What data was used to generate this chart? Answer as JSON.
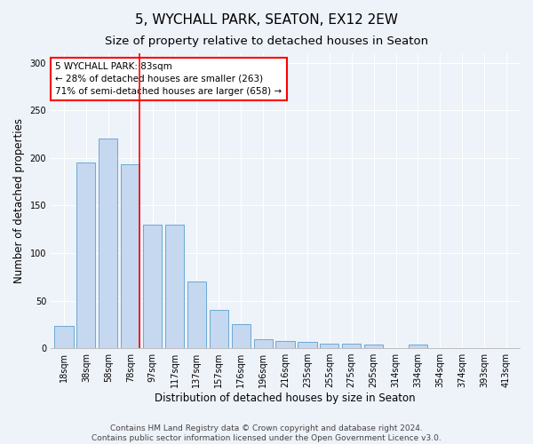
{
  "title": "5, WYCHALL PARK, SEATON, EX12 2EW",
  "subtitle": "Size of property relative to detached houses in Seaton",
  "xlabel": "Distribution of detached houses by size in Seaton",
  "ylabel": "Number of detached properties",
  "categories": [
    "18sqm",
    "38sqm",
    "58sqm",
    "78sqm",
    "97sqm",
    "117sqm",
    "137sqm",
    "157sqm",
    "176sqm",
    "196sqm",
    "216sqm",
    "235sqm",
    "255sqm",
    "275sqm",
    "295sqm",
    "314sqm",
    "334sqm",
    "354sqm",
    "374sqm",
    "393sqm",
    "413sqm"
  ],
  "values": [
    23,
    195,
    220,
    193,
    130,
    130,
    70,
    40,
    25,
    9,
    8,
    7,
    5,
    5,
    4,
    0,
    4,
    0,
    0,
    0,
    0
  ],
  "bar_color": "#c5d8ef",
  "bar_edge_color": "#6aaad4",
  "annotation_text": "5 WYCHALL PARK: 83sqm\n← 28% of detached houses are smaller (263)\n71% of semi-detached houses are larger (658) →",
  "annotation_box_color": "white",
  "annotation_box_edge_color": "red",
  "vline_color": "red",
  "vline_x": 3.42,
  "ylim": [
    0,
    310
  ],
  "yticks": [
    0,
    50,
    100,
    150,
    200,
    250,
    300
  ],
  "footer1": "Contains HM Land Registry data © Crown copyright and database right 2024.",
  "footer2": "Contains public sector information licensed under the Open Government Licence v3.0.",
  "background_color": "#eef2f9",
  "plot_background": "#eef2f9",
  "title_fontsize": 11,
  "subtitle_fontsize": 9.5,
  "axis_label_fontsize": 8.5,
  "tick_fontsize": 7,
  "annotation_fontsize": 7.5,
  "footer_fontsize": 6.5
}
